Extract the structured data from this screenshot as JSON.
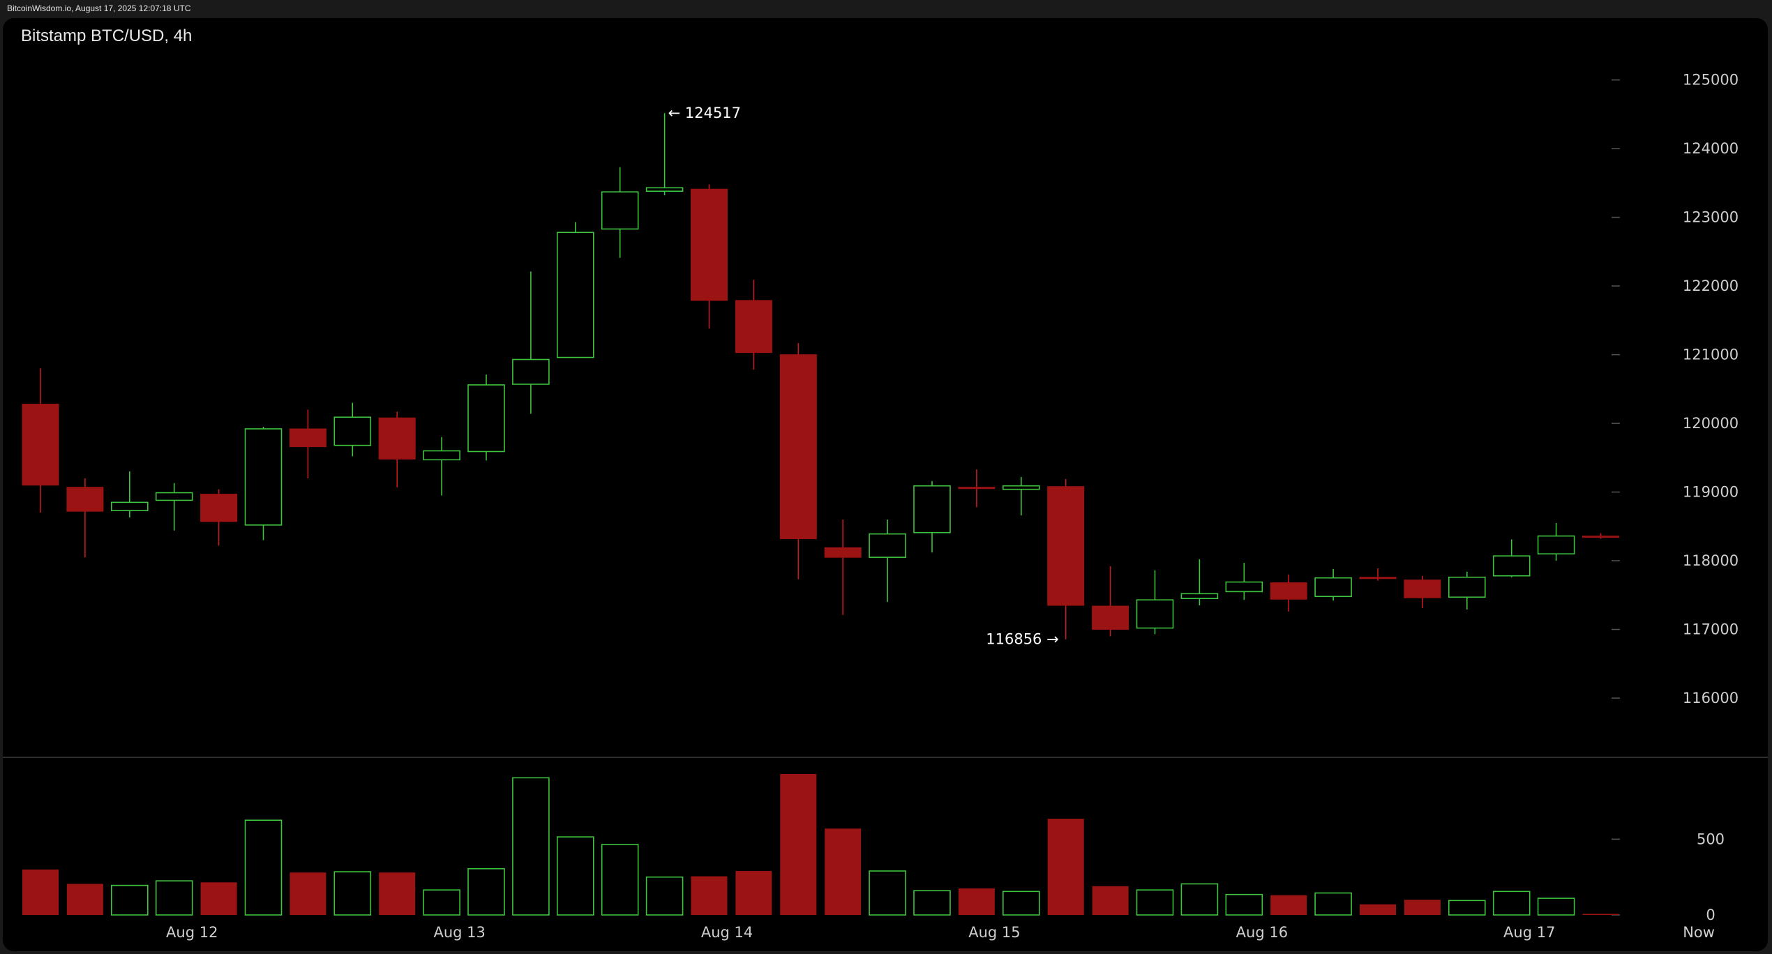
{
  "source_line": "BitcoinWisdom.io, August 17, 2025 12:07:18 UTC",
  "colors": {
    "up": "#3ec43e",
    "down": "#9c1313",
    "down_wick": "#c41c1c",
    "background": "#000000",
    "text": "#cfcfcf"
  },
  "chart_data": {
    "type": "candlestick",
    "title": "Bitstamp BTC/USD, 4h",
    "price_axis": {
      "range": [
        115300,
        125900
      ],
      "ticks": [
        116000,
        117000,
        118000,
        119000,
        120000,
        121000,
        122000,
        123000,
        124000,
        125000
      ]
    },
    "volume_axis": {
      "range": [
        0,
        1040
      ],
      "ticks": [
        0,
        500
      ]
    },
    "x_labels": [
      {
        "label": "Aug 12",
        "index": 3.4
      },
      {
        "label": "Aug 13",
        "index": 9.4
      },
      {
        "label": "Aug 14",
        "index": 15.4
      },
      {
        "label": "Aug 15",
        "index": 21.4
      },
      {
        "label": "Aug 16",
        "index": 27.4
      },
      {
        "label": "Aug 17",
        "index": 33.4
      },
      {
        "label": "Now",
        "index": 37.2
      }
    ],
    "annotations": [
      {
        "text": "← 124517",
        "value": 124517,
        "index": 14,
        "side": "right"
      },
      {
        "text": "116856 →",
        "value": 116856,
        "index": 23,
        "side": "left"
      }
    ],
    "candles": [
      {
        "o": 120280,
        "h": 120800,
        "l": 118700,
        "c": 119100,
        "v": 300
      },
      {
        "o": 119070,
        "h": 119200,
        "l": 118050,
        "c": 118720,
        "v": 205
      },
      {
        "o": 118730,
        "h": 119300,
        "l": 118630,
        "c": 118850,
        "v": 195
      },
      {
        "o": 118880,
        "h": 119130,
        "l": 118440,
        "c": 118990,
        "v": 225
      },
      {
        "o": 118970,
        "h": 119040,
        "l": 118220,
        "c": 118570,
        "v": 215
      },
      {
        "o": 118520,
        "h": 119950,
        "l": 118300,
        "c": 119920,
        "v": 625
      },
      {
        "o": 119920,
        "h": 120200,
        "l": 119200,
        "c": 119660,
        "v": 280
      },
      {
        "o": 119680,
        "h": 120300,
        "l": 119520,
        "c": 120090,
        "v": 285
      },
      {
        "o": 120080,
        "h": 120170,
        "l": 119070,
        "c": 119480,
        "v": 280
      },
      {
        "o": 119470,
        "h": 119800,
        "l": 118950,
        "c": 119600,
        "v": 165
      },
      {
        "o": 119590,
        "h": 120710,
        "l": 119460,
        "c": 120560,
        "v": 305
      },
      {
        "o": 120570,
        "h": 122210,
        "l": 120140,
        "c": 120930,
        "v": 905
      },
      {
        "o": 120960,
        "h": 122930,
        "l": 120960,
        "c": 122780,
        "v": 515
      },
      {
        "o": 122830,
        "h": 123730,
        "l": 122410,
        "c": 123370,
        "v": 465
      },
      {
        "o": 123380,
        "h": 124517,
        "l": 123320,
        "c": 123430,
        "v": 250
      },
      {
        "o": 123410,
        "h": 123480,
        "l": 121380,
        "c": 121790,
        "v": 255
      },
      {
        "o": 121790,
        "h": 122090,
        "l": 120780,
        "c": 121030,
        "v": 290
      },
      {
        "o": 121000,
        "h": 121170,
        "l": 117730,
        "c": 118320,
        "v": 930
      },
      {
        "o": 118190,
        "h": 118600,
        "l": 117210,
        "c": 118050,
        "v": 570
      },
      {
        "o": 118050,
        "h": 118600,
        "l": 117400,
        "c": 118390,
        "v": 290
      },
      {
        "o": 118410,
        "h": 119160,
        "l": 118120,
        "c": 119090,
        "v": 160
      },
      {
        "o": 119070,
        "h": 119330,
        "l": 118780,
        "c": 119060,
        "v": 175
      },
      {
        "o": 119040,
        "h": 119220,
        "l": 118660,
        "c": 119090,
        "v": 155
      },
      {
        "o": 119080,
        "h": 119190,
        "l": 116856,
        "c": 117350,
        "v": 635
      },
      {
        "o": 117340,
        "h": 117920,
        "l": 116900,
        "c": 117000,
        "v": 190
      },
      {
        "o": 117020,
        "h": 117860,
        "l": 116930,
        "c": 117430,
        "v": 165
      },
      {
        "o": 117450,
        "h": 118020,
        "l": 117350,
        "c": 117520,
        "v": 205
      },
      {
        "o": 117550,
        "h": 117970,
        "l": 117430,
        "c": 117690,
        "v": 135
      },
      {
        "o": 117680,
        "h": 117800,
        "l": 117260,
        "c": 117440,
        "v": 130
      },
      {
        "o": 117480,
        "h": 117880,
        "l": 117420,
        "c": 117750,
        "v": 145
      },
      {
        "o": 117760,
        "h": 117890,
        "l": 117710,
        "c": 117740,
        "v": 70
      },
      {
        "o": 117720,
        "h": 117780,
        "l": 117310,
        "c": 117460,
        "v": 100
      },
      {
        "o": 117470,
        "h": 117840,
        "l": 117290,
        "c": 117760,
        "v": 95
      },
      {
        "o": 117780,
        "h": 118310,
        "l": 117760,
        "c": 118070,
        "v": 155
      },
      {
        "o": 118100,
        "h": 118550,
        "l": 118000,
        "c": 118360,
        "v": 110
      },
      {
        "o": 118360,
        "h": 118400,
        "l": 118320,
        "c": 118340,
        "v": 5
      }
    ]
  }
}
